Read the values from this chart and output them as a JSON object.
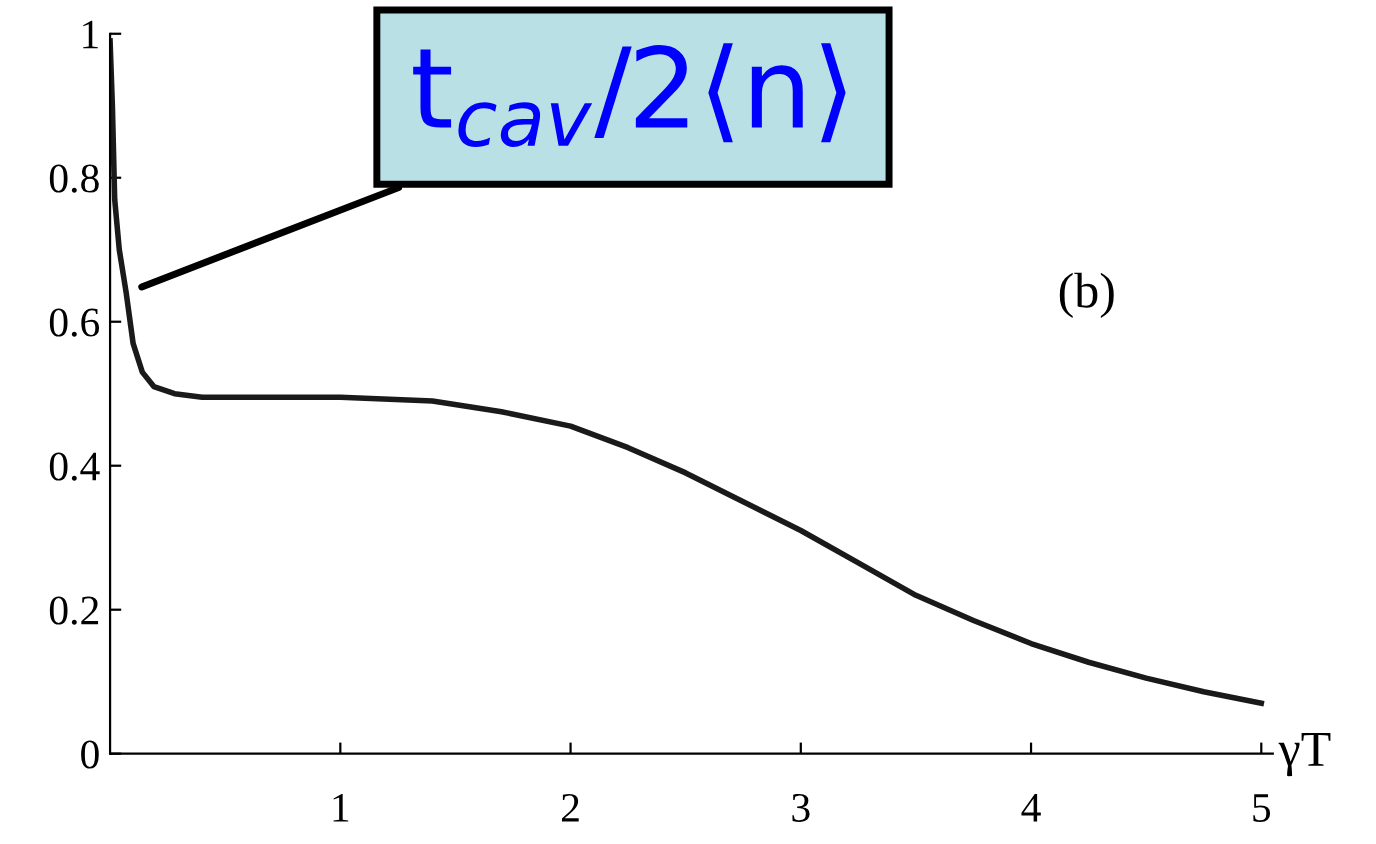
{
  "chart_data": {
    "type": "line",
    "xlabel": "γT",
    "x": [
      0,
      0.01,
      0.02,
      0.04,
      0.07,
      0.1,
      0.14,
      0.19,
      0.28,
      0.4,
      0.6,
      1.0,
      1.4,
      1.7,
      2.0,
      2.25,
      2.5,
      2.75,
      3.0,
      3.25,
      3.5,
      3.75,
      4.0,
      4.25,
      4.5,
      4.75,
      5.0
    ],
    "series": [
      {
        "color": "#1a1a1a",
        "values": [
          0.99,
          0.9,
          0.77,
          0.7,
          0.64,
          0.57,
          0.53,
          0.51,
          0.5,
          0.495,
          0.495,
          0.495,
          0.49,
          0.475,
          0.455,
          0.425,
          0.39,
          0.35,
          0.31,
          0.265,
          0.22,
          0.185,
          0.153,
          0.127,
          0.105,
          0.086,
          0.07
        ]
      }
    ],
    "xlim": [
      0,
      5.05
    ],
    "ylim": [
      0,
      1
    ],
    "xticks": [
      1,
      2,
      3,
      4,
      5
    ],
    "yticks": [
      0,
      0.2,
      0.4,
      0.6,
      0.8,
      1
    ],
    "grid": false,
    "legend": false,
    "marker": "none",
    "line_style": "solid",
    "annotations": [
      {
        "text": "t$_{cav}$/2⟨n⟩",
        "x": 0.07,
        "y": 0.64
      },
      "(b)"
    ]
  }
}
